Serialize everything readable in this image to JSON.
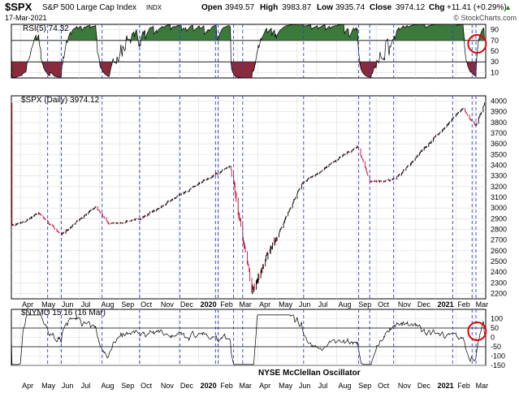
{
  "header": {
    "symbol": "$SPX",
    "name": "S&P 500 Large Cap Index",
    "exchange": "INDX",
    "date": "17-Mar-2021",
    "open_label": "Open",
    "open": "3949.57",
    "high_label": "High",
    "high": "3983.87",
    "low_label": "Low",
    "low": "3935.74",
    "close_label": "Close",
    "close": "3974.12",
    "chg_label": "Chg",
    "chg": "+11.41 (+0.29%)",
    "up_arrow": "▲",
    "watermark": "© StockCharts.com"
  },
  "colors": {
    "up": "#000000",
    "down": "#c8102e",
    "rsi_over": "#3c7a3c",
    "rsi_under": "#8b2a3a",
    "vline": "#2a3fd6",
    "circle": "#e00000",
    "grid": "#dcdcdc"
  },
  "chart_data": [
    {
      "type": "line",
      "name": "rsi-panel",
      "legend": "RSI(5) 74.32",
      "ylim": [
        0,
        100
      ],
      "y_ticks": [
        10,
        30,
        50,
        70,
        90
      ],
      "levels": [
        30,
        70
      ],
      "last_value": 74.32
    },
    {
      "type": "candlestick",
      "name": "price-panel",
      "legend": "$SPX (Daily) 3974.12",
      "ylim": [
        2150,
        4050
      ],
      "y_ticks": [
        2200,
        2300,
        2400,
        2500,
        2600,
        2700,
        2800,
        2900,
        3000,
        3100,
        3200,
        3300,
        3400,
        3500,
        3600,
        3700,
        3800,
        3900,
        4000
      ],
      "key_points": [
        {
          "date": "2019-03-19",
          "value": 2830
        },
        {
          "date": "2019-04-30",
          "value": 2945
        },
        {
          "date": "2019-06-03",
          "value": 2745
        },
        {
          "date": "2019-07-26",
          "value": 3020
        },
        {
          "date": "2019-08-15",
          "value": 2845
        },
        {
          "date": "2019-10-03",
          "value": 2895
        },
        {
          "date": "2019-12-31",
          "value": 3230
        },
        {
          "date": "2020-02-19",
          "value": 3385
        },
        {
          "date": "2020-03-23",
          "value": 2235
        },
        {
          "date": "2020-06-08",
          "value": 3230
        },
        {
          "date": "2020-09-02",
          "value": 3580
        },
        {
          "date": "2020-09-23",
          "value": 3240
        },
        {
          "date": "2020-10-30",
          "value": 3270
        },
        {
          "date": "2021-02-12",
          "value": 3935
        },
        {
          "date": "2021-03-04",
          "value": 3770
        },
        {
          "date": "2021-03-17",
          "value": 3974
        }
      ]
    },
    {
      "type": "line",
      "name": "nymo-panel",
      "legend": "$NYMO 15.16 (16 Mar)",
      "annotation": "NYSE McClellan Oscillator",
      "ylim": [
        -150,
        150
      ],
      "y_ticks": [
        -150,
        -100,
        -50,
        0,
        50,
        100
      ],
      "levels": [
        -50,
        50
      ],
      "last_value": 15.16
    }
  ],
  "x_axis": {
    "ticks": [
      {
        "date": "2019-04-01",
        "label": "Apr",
        "bold": false
      },
      {
        "date": "2019-05-01",
        "label": "May",
        "bold": false
      },
      {
        "date": "2019-06-01",
        "label": "Jun",
        "bold": false
      },
      {
        "date": "2019-07-01",
        "label": "Jul",
        "bold": false
      },
      {
        "date": "2019-08-01",
        "label": "Aug",
        "bold": false
      },
      {
        "date": "2019-09-01",
        "label": "Sep",
        "bold": false
      },
      {
        "date": "2019-10-01",
        "label": "Oct",
        "bold": false
      },
      {
        "date": "2019-11-01",
        "label": "Nov",
        "bold": false
      },
      {
        "date": "2019-12-01",
        "label": "Dec",
        "bold": false
      },
      {
        "date": "2020-01-01",
        "label": "2020",
        "bold": true
      },
      {
        "date": "2020-02-01",
        "label": "Feb",
        "bold": false
      },
      {
        "date": "2020-03-01",
        "label": "Mar",
        "bold": false
      },
      {
        "date": "2020-04-01",
        "label": "Apr",
        "bold": false
      },
      {
        "date": "2020-05-01",
        "label": "May",
        "bold": false
      },
      {
        "date": "2020-06-01",
        "label": "Jun",
        "bold": false
      },
      {
        "date": "2020-07-01",
        "label": "Jul",
        "bold": false
      },
      {
        "date": "2020-08-01",
        "label": "Aug",
        "bold": false
      },
      {
        "date": "2020-09-01",
        "label": "Sep",
        "bold": false
      },
      {
        "date": "2020-10-01",
        "label": "Oct",
        "bold": false
      },
      {
        "date": "2020-11-01",
        "label": "Nov",
        "bold": false
      },
      {
        "date": "2020-12-01",
        "label": "Dec",
        "bold": false
      },
      {
        "date": "2021-01-01",
        "label": "2021",
        "bold": true
      },
      {
        "date": "2021-02-01",
        "label": "Feb",
        "bold": false
      },
      {
        "date": "2021-03-01",
        "label": "Mar",
        "bold": false
      }
    ],
    "signal_dates": [
      "2019-05-13",
      "2019-06-03",
      "2019-08-05",
      "2019-10-02",
      "2019-12-03",
      "2020-01-27",
      "2020-01-31",
      "2020-02-24",
      "2020-03-09",
      "2020-06-11",
      "2020-09-04",
      "2020-09-21",
      "2020-10-28",
      "2021-01-27",
      "2021-02-26",
      "2021-03-04"
    ],
    "circle_dates": [
      "2021-03-12"
    ]
  }
}
